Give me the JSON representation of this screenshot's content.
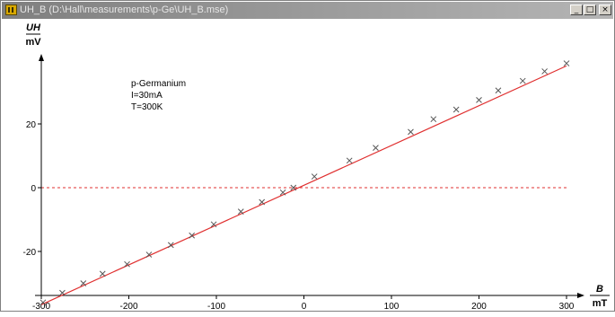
{
  "window": {
    "title": "UH_B (D:\\Hall\\measurements\\p-Ge\\UH_B.mse)",
    "controls": {
      "minimize": "_",
      "maximize": "□",
      "close": "×"
    }
  },
  "annotation": {
    "line1": "p-Germanium",
    "line2": "I=30mA",
    "line3": "T=300K"
  },
  "colors": {
    "fit_line": "#e03030",
    "marker": "#555555",
    "zero_line": "#e03030"
  },
  "chart_data": {
    "type": "scatter",
    "title": "",
    "ylabel_top": "UH",
    "ylabel_unit": "mV",
    "xlabel_top": "B",
    "xlabel_unit": "mT",
    "xlim": [
      -300,
      310
    ],
    "ylim": [
      -36,
      40
    ],
    "x_ticks": [
      -300,
      -200,
      -100,
      0,
      100,
      200,
      300
    ],
    "y_ticks": [
      -20,
      0,
      20
    ],
    "zero_reference_line": true,
    "fit": {
      "type": "linear",
      "x": [
        -300,
        300
      ],
      "y": [
        -36.7,
        38.2
      ]
    },
    "points": {
      "x": [
        -298,
        -276,
        -252,
        -230,
        -202,
        -177,
        -152,
        -128,
        -103,
        -72,
        -48,
        -24,
        -12,
        12,
        52,
        82,
        122,
        148,
        174,
        200,
        222,
        250,
        275,
        300
      ],
      "y": [
        -36,
        -33,
        -30,
        -27,
        -24,
        -21,
        -18,
        -15,
        -11.5,
        -7.5,
        -4.5,
        -1.5,
        0,
        3.5,
        8.5,
        12.5,
        17.5,
        21.5,
        24.5,
        27.5,
        30.5,
        33.5,
        36.5,
        39
      ]
    }
  }
}
